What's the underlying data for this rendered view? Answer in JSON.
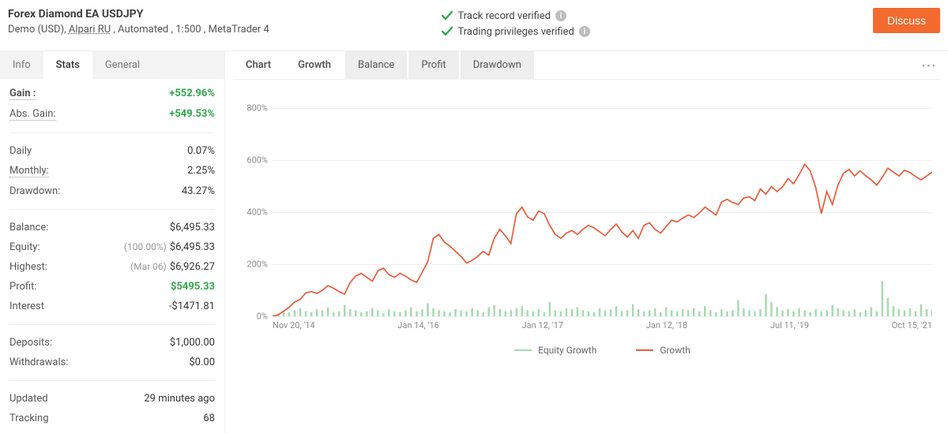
{
  "header": {
    "title": "Forex Diamond EA USDJPY",
    "subtitle_parts": {
      "demo": "Demo (USD), ",
      "broker": "Alpari RU",
      "rest": " , Automated , 1:500 , MetaTrader 4"
    },
    "verif1": "Track record verified",
    "verif2": "Trading privileges verified",
    "discuss": "Discuss",
    "check_color": "#2fa84a"
  },
  "sidebar_tabs": [
    "Info",
    "Stats",
    "General"
  ],
  "sidebar_active_tab": 1,
  "stats": {
    "group1": [
      {
        "label": "Gain :",
        "value": "+552.96%",
        "green": true,
        "bold": true,
        "dotted": true
      },
      {
        "label": "Abs. Gain:",
        "value": "+549.53%",
        "green": true,
        "dotted": true
      }
    ],
    "group2": [
      {
        "label": "Daily",
        "value": "0.07%"
      },
      {
        "label": "Monthly:",
        "value": "2.25%",
        "dotted": true
      },
      {
        "label": "Drawdown:",
        "value": "43.27%"
      }
    ],
    "group3": [
      {
        "label": "Balance:",
        "value": "$6,495.33"
      },
      {
        "label": "Equity:",
        "note": "(100.00%)",
        "value": "$6,495.33"
      },
      {
        "label": "Highest:",
        "note": "(Mar 06)",
        "value": "$6,926.27"
      },
      {
        "label": "Profit:",
        "value": "$5495.33",
        "green": true
      },
      {
        "label": "Interest",
        "value": "-$1471.81"
      }
    ],
    "group4": [
      {
        "label": "Deposits:",
        "value": "$1,000.00"
      },
      {
        "label": "Withdrawals:",
        "value": "$0.00"
      }
    ],
    "group5": [
      {
        "label": "Updated",
        "value": "29 minutes ago"
      },
      {
        "label": "Tracking",
        "value": "68"
      }
    ]
  },
  "chart": {
    "tabs": [
      "Chart",
      "Growth",
      "Balance",
      "Profit",
      "Drawdown"
    ],
    "active_tab": 1,
    "type": "line",
    "y_ticks": [
      0,
      200,
      400,
      600,
      800
    ],
    "y_tick_suffix": "%",
    "ylim": [
      0,
      850
    ],
    "x_labels": [
      "Nov 20, '14",
      "Jan 14, '16",
      "Jan 12, '17",
      "Jan 12, '18",
      "Jul 11, '19",
      "Oct 15, '21"
    ],
    "line_color": "#ea5b3a",
    "line_width": 1.7,
    "equity_bar_color": "#a8d9b0",
    "background_color": "#ffffff",
    "grid_color": "#eeeeee",
    "legend": [
      {
        "label": "Equity Growth",
        "color": "#a8d9b0"
      },
      {
        "label": "Growth",
        "color": "#ea5b3a"
      }
    ],
    "growth_series": [
      0,
      5,
      20,
      35,
      55,
      65,
      90,
      95,
      88,
      100,
      118,
      108,
      95,
      85,
      130,
      155,
      165,
      150,
      135,
      175,
      185,
      160,
      150,
      165,
      155,
      140,
      130,
      170,
      210,
      300,
      315,
      285,
      270,
      250,
      230,
      205,
      215,
      230,
      250,
      235,
      300,
      335,
      310,
      280,
      395,
      420,
      382,
      370,
      405,
      395,
      350,
      315,
      300,
      320,
      330,
      315,
      335,
      350,
      340,
      325,
      310,
      334,
      355,
      325,
      305,
      330,
      300,
      350,
      360,
      335,
      320,
      345,
      370,
      363,
      378,
      390,
      380,
      398,
      420,
      405,
      390,
      440,
      450,
      438,
      430,
      455,
      460,
      445,
      490,
      470,
      499,
      480,
      498,
      530,
      510,
      545,
      585,
      560,
      495,
      395,
      480,
      430,
      505,
      550,
      565,
      540,
      560,
      540,
      525,
      505,
      535,
      570,
      555,
      540,
      562,
      553,
      538,
      525,
      540,
      555
    ],
    "equity_bars": [
      2,
      3,
      5,
      4,
      6,
      8,
      5,
      4,
      7,
      6,
      9,
      4,
      5,
      11,
      7,
      6,
      4,
      5,
      8,
      6,
      3,
      7,
      5,
      4,
      6,
      9,
      5,
      7,
      13,
      8,
      6,
      5,
      4,
      7,
      6,
      5,
      8,
      6,
      4,
      9,
      11,
      7,
      5,
      6,
      8,
      10,
      6,
      5,
      7,
      4,
      14,
      6,
      5,
      8,
      7,
      9,
      6,
      5,
      4,
      8,
      6,
      7,
      10,
      5,
      6,
      12,
      7,
      5,
      6,
      8,
      4,
      9,
      6,
      5,
      7,
      6,
      8,
      5,
      10,
      6,
      4,
      7,
      5,
      6,
      16,
      8,
      6,
      5,
      7,
      22,
      14,
      9,
      6,
      7,
      5,
      8,
      6,
      4,
      7,
      5,
      6,
      11,
      8,
      6,
      5,
      7,
      4,
      6,
      9,
      5,
      35,
      18,
      10,
      7,
      6,
      8,
      5,
      12,
      7,
      6
    ]
  }
}
